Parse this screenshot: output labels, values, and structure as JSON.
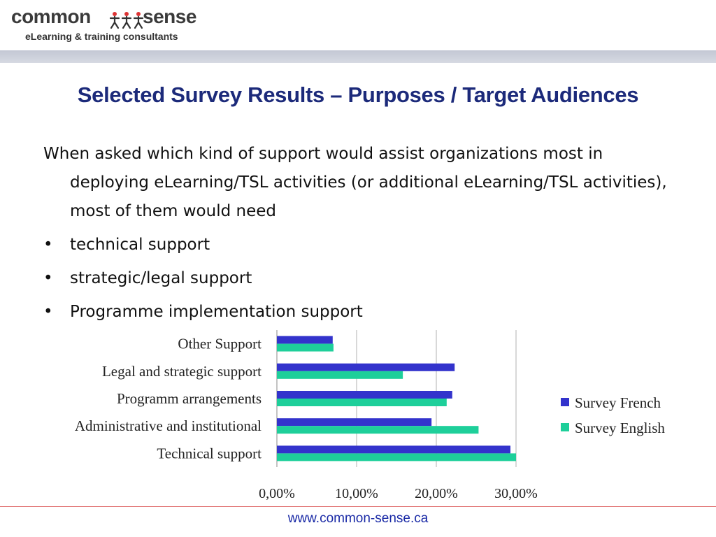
{
  "logo": {
    "word_left": "common",
    "word_right": "sense",
    "tagline": "eLearning & training consultants"
  },
  "slide": {
    "title": "Selected Survey Results – Purposes / Target Audiences",
    "intro": "When asked which kind of support would assist organizations most in deploying eLearning/TSL activities (or additional eLearning/TSL activities), most of them would need",
    "bullet_glyph": "•",
    "bullets": [
      "technical support",
      "strategic/legal support",
      "Programme implementation support"
    ]
  },
  "chart_data": {
    "type": "bar",
    "orientation": "horizontal",
    "categories": [
      "Other Support",
      "Legal and strategic support",
      "Programm arrangements",
      "Administrative and institutional",
      "Technical support"
    ],
    "series": [
      {
        "name": "Survey French",
        "color": "#3333cc",
        "values": [
          7.0,
          22.3,
          22.0,
          19.4,
          29.3
        ]
      },
      {
        "name": "Survey English",
        "color": "#1ecf9a",
        "values": [
          7.1,
          15.8,
          21.3,
          25.3,
          30.0
        ]
      }
    ],
    "x_ticks": [
      "0,00%",
      "10,00%",
      "20,00%",
      "30,00%"
    ],
    "xlim": [
      0,
      30
    ],
    "grid": "vertical",
    "legend": "right"
  },
  "footer": {
    "url": "www.common-sense.ca"
  }
}
